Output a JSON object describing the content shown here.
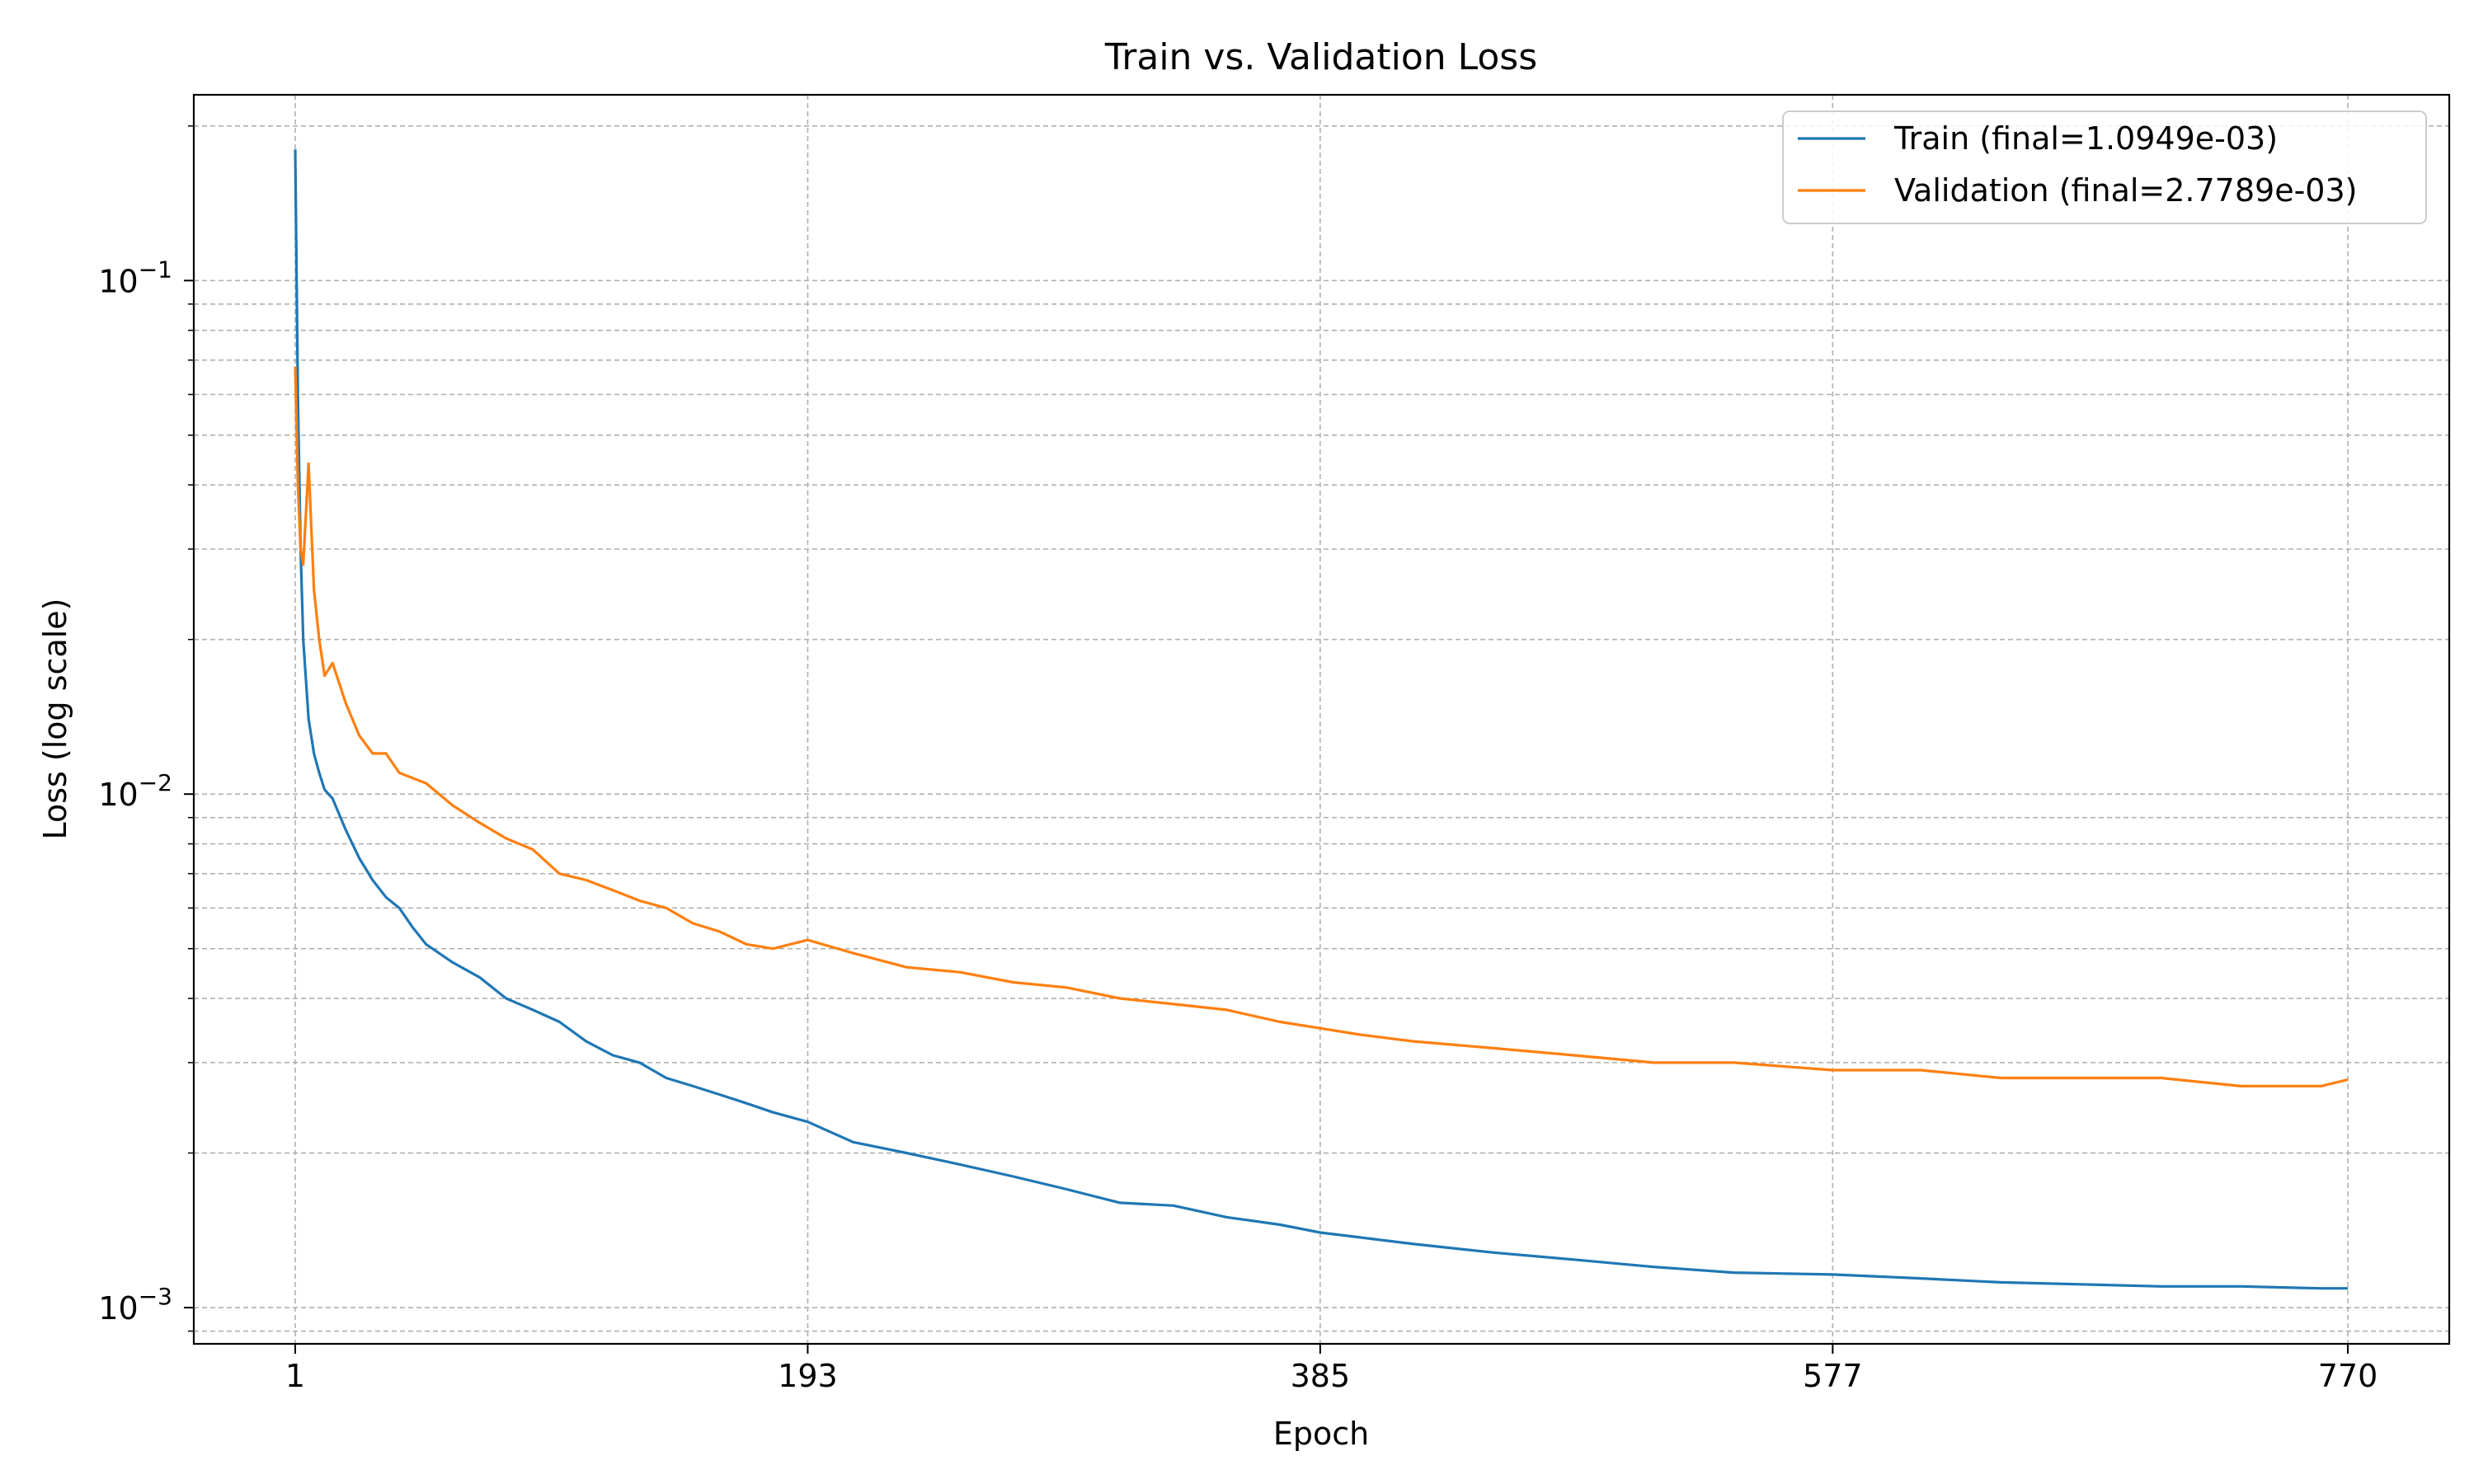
{
  "chart_data": {
    "type": "line",
    "title": "Train vs. Validation Loss",
    "xlabel": "Epoch",
    "ylabel": "Loss (log scale)",
    "yscale": "log",
    "xlim": [
      -37,
      808
    ],
    "ylim": [
      0.00085,
      0.23
    ],
    "xticks": [
      1,
      193,
      385,
      577,
      770
    ],
    "yticks": [
      {
        "value": 0.001,
        "base": "10",
        "exp": "−3"
      },
      {
        "value": 0.01,
        "base": "10",
        "exp": "−2"
      },
      {
        "value": 0.1,
        "base": "10",
        "exp": "−1"
      }
    ],
    "grid": true,
    "legend": "top-right",
    "series": [
      {
        "name": "Train (final=1.0949e-03)",
        "color": "#1f77b4",
        "x": [
          1,
          2,
          3,
          4,
          6,
          8,
          10,
          12,
          15,
          20,
          25,
          30,
          35,
          40,
          45,
          50,
          60,
          70,
          80,
          90,
          100,
          110,
          120,
          130,
          140,
          150,
          160,
          170,
          180,
          193,
          210,
          230,
          250,
          270,
          290,
          310,
          330,
          350,
          370,
          385,
          400,
          420,
          450,
          480,
          510,
          540,
          577,
          610,
          640,
          670,
          700,
          730,
          760,
          770
        ],
        "y": [
          0.18,
          0.06,
          0.03,
          0.02,
          0.014,
          0.012,
          0.011,
          0.0102,
          0.0098,
          0.0085,
          0.0075,
          0.0068,
          0.0063,
          0.006,
          0.0055,
          0.0051,
          0.0047,
          0.0044,
          0.004,
          0.0038,
          0.0036,
          0.0033,
          0.0031,
          0.003,
          0.0028,
          0.0027,
          0.0026,
          0.0025,
          0.0024,
          0.0023,
          0.0021,
          0.002,
          0.0019,
          0.0018,
          0.0017,
          0.0016,
          0.00158,
          0.0015,
          0.00145,
          0.0014,
          0.00137,
          0.00133,
          0.00128,
          0.00124,
          0.0012,
          0.00117,
          0.00116,
          0.00114,
          0.00112,
          0.00111,
          0.0011,
          0.0011,
          0.00109,
          0.00109
        ]
      },
      {
        "name": "Validation  (final=2.7789e-03)",
        "color": "#ff7f0e",
        "x": [
          1,
          2,
          3,
          4,
          6,
          8,
          10,
          12,
          15,
          20,
          25,
          30,
          35,
          40,
          50,
          60,
          70,
          80,
          90,
          100,
          110,
          120,
          130,
          140,
          150,
          160,
          170,
          180,
          193,
          210,
          230,
          250,
          270,
          290,
          310,
          330,
          350,
          370,
          385,
          400,
          420,
          450,
          480,
          510,
          540,
          577,
          610,
          640,
          670,
          700,
          730,
          760,
          770
        ],
        "y": [
          0.068,
          0.04,
          0.03,
          0.028,
          0.044,
          0.025,
          0.02,
          0.017,
          0.018,
          0.015,
          0.013,
          0.012,
          0.012,
          0.011,
          0.0105,
          0.0095,
          0.0088,
          0.0082,
          0.0078,
          0.007,
          0.0068,
          0.0065,
          0.0062,
          0.006,
          0.0056,
          0.0054,
          0.0051,
          0.005,
          0.0052,
          0.0049,
          0.0046,
          0.0045,
          0.0043,
          0.0042,
          0.004,
          0.0039,
          0.0038,
          0.0036,
          0.0035,
          0.0034,
          0.0033,
          0.0032,
          0.0031,
          0.003,
          0.003,
          0.0029,
          0.0029,
          0.0028,
          0.0028,
          0.0028,
          0.0027,
          0.0027,
          0.00278
        ]
      }
    ]
  }
}
